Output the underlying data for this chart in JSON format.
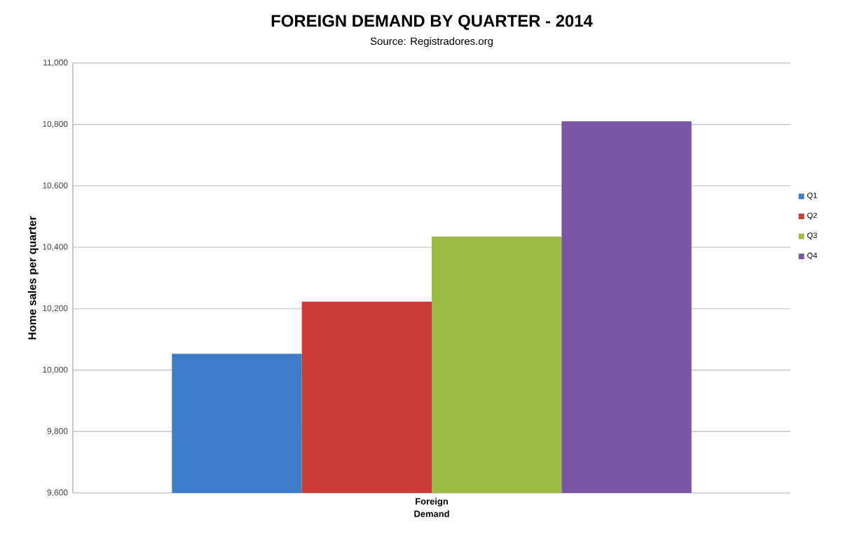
{
  "chart_data": {
    "type": "bar",
    "title": "FOREIGN DEMAND BY QUARTER - 2014",
    "subtitle": "Source: Registradores.org",
    "xlabel": "Demand",
    "ylabel": "Home sales per quarter",
    "categories": [
      "Foreign"
    ],
    "series": [
      {
        "name": "Q1",
        "color": "#3d7cc9",
        "values": [
          10053
        ]
      },
      {
        "name": "Q2",
        "color": "#c93c37",
        "values": [
          10223
        ]
      },
      {
        "name": "Q3",
        "color": "#9bbb45",
        "values": [
          10435
        ]
      },
      {
        "name": "Q4",
        "color": "#7a55a4",
        "values": [
          10810
        ]
      }
    ],
    "ylim": [
      9600,
      11000
    ],
    "yticks": [
      {
        "value": 9600,
        "label": "9,600"
      },
      {
        "value": 9800,
        "label": "9,800"
      },
      {
        "value": 10000,
        "label": "10,000"
      },
      {
        "value": 10200,
        "label": "10,200"
      },
      {
        "value": 10400,
        "label": "10,400"
      },
      {
        "value": 10600,
        "label": "10,600"
      },
      {
        "value": 10800,
        "label": "10,800"
      },
      {
        "value": 11000,
        "label": "11,000"
      }
    ],
    "grid": "y",
    "legend": "right"
  }
}
